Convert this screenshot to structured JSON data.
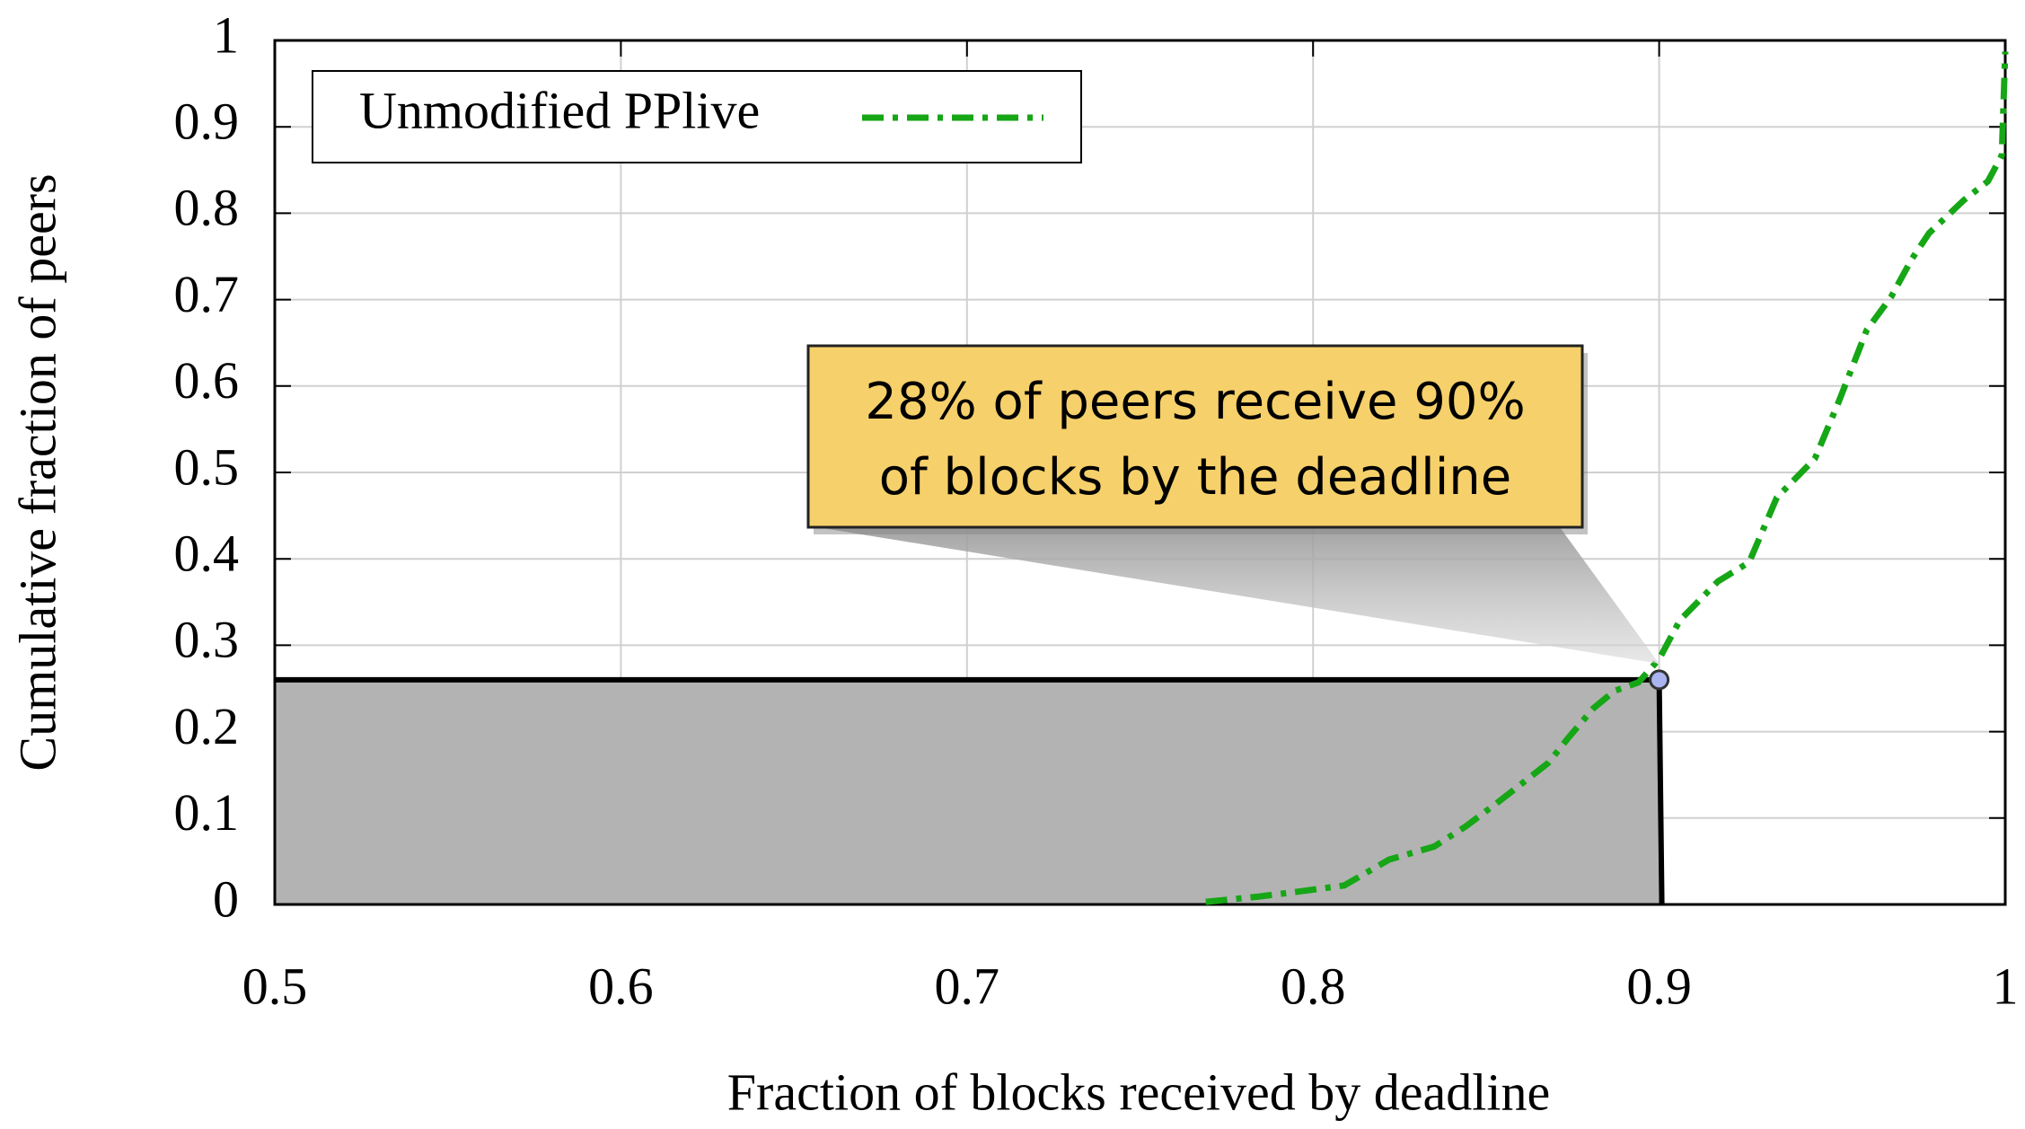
{
  "chart_data": {
    "type": "line",
    "xlabel": "Fraction of blocks received by deadline",
    "ylabel": "Cumulative fraction of peers",
    "x": [
      0.769,
      0.784,
      0.796,
      0.809,
      0.822,
      0.835,
      0.844,
      0.853,
      0.861,
      0.868,
      0.874,
      0.881,
      0.887,
      0.894,
      0.9,
      0.906,
      0.917,
      0.926,
      0.934,
      0.945,
      0.952,
      0.96,
      0.967,
      0.973,
      0.978,
      0.988,
      0.995,
      0.999,
      1.0
    ],
    "series": [
      {
        "name": "Unmodified PPlive",
        "color": "#16a616",
        "values": [
          0.003,
          0.009,
          0.015,
          0.022,
          0.052,
          0.067,
          0.09,
          0.117,
          0.142,
          0.164,
          0.194,
          0.227,
          0.247,
          0.257,
          0.284,
          0.329,
          0.374,
          0.396,
          0.471,
          0.516,
          0.583,
          0.665,
          0.703,
          0.747,
          0.777,
          0.815,
          0.837,
          0.867,
          0.987
        ]
      }
    ],
    "xlim": [
      0.5,
      1
    ],
    "xticks": [
      0.5,
      0.6,
      0.7,
      0.8,
      0.9,
      1
    ],
    "ylim": [
      0,
      1
    ],
    "yticks": [
      0,
      0.1,
      0.2,
      0.3,
      0.4,
      0.5,
      0.6,
      0.7,
      0.8,
      0.9,
      1
    ],
    "grid": true,
    "legend": "upper left",
    "highlight": {
      "x": 0.9,
      "y": 0.26
    },
    "annotation": [
      "28% of peers receive 90%",
      "of blocks by the deadline"
    ]
  }
}
